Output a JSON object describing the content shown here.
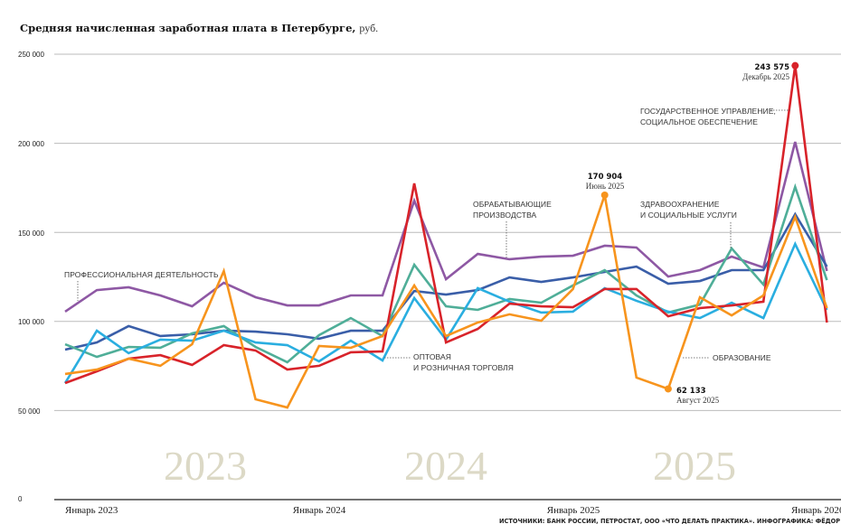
{
  "chart_data": {
    "type": "line",
    "title": "Средняя начисленная заработная плата в Петербурге,",
    "unit": "руб.",
    "ylim": [
      0,
      250000
    ],
    "yticks": [
      "0",
      "50 000",
      "100 000",
      "150 000",
      "200 000",
      "250 000"
    ],
    "yticks_values": [
      0,
      50000,
      100000,
      150000,
      200000,
      250000
    ],
    "xticks": [
      "Январь 2023",
      "Январь 2024",
      "Январь 2025",
      "Январь 2026"
    ],
    "year_watermarks": [
      "2023",
      "2024",
      "2025"
    ],
    "grid": true,
    "series": [
      {
        "name": "ПРОФЕССИОНАЛЬНАЯ ДЕЯТЕЛЬНОСТЬ",
        "color": "#8e58a4",
        "values": [
          105500,
          117600,
          119200,
          114600,
          108500,
          121700,
          113600,
          109000,
          109000,
          114600,
          114600,
          167800,
          123700,
          137900,
          134900,
          136400,
          136900,
          142500,
          141500,
          125200,
          128800,
          136400,
          130300,
          200800,
          128300
        ]
      },
      {
        "name": "ОБРАБАТЫВАЮЩИЕ ПРОИЗВОДСТВА",
        "color": "#3a5ea8",
        "values": [
          84200,
          88200,
          97400,
          91800,
          92800,
          94800,
          94300,
          92800,
          90300,
          94800,
          94800,
          117100,
          115100,
          117600,
          124700,
          122200,
          124700,
          127800,
          130800,
          121200,
          122700,
          128800,
          128800,
          160200,
          130800
        ]
      },
      {
        "name": "ЗДРАВООХРАНЕНИЕ И СОЦИАЛЬНЫЕ УСЛУГИ",
        "color": "#4fae98",
        "values": [
          87200,
          80100,
          85700,
          85200,
          93300,
          97400,
          85700,
          77100,
          92300,
          101900,
          91800,
          131800,
          108500,
          106500,
          112600,
          110500,
          120200,
          128800,
          114600,
          105000,
          109500,
          141000,
          120700,
          175500,
          123200
        ]
      },
      {
        "name": "ОПТОВАЯ И РОЗНИЧНАЯ ТОРГОВЛЯ",
        "color": "#2aaee0",
        "values": [
          65400,
          94800,
          82200,
          89800,
          89200,
          94800,
          88200,
          86700,
          77600,
          89200,
          78100,
          113100,
          89800,
          118700,
          111100,
          105000,
          105500,
          118700,
          111600,
          105500,
          101900,
          110500,
          101900,
          143500,
          106500
        ]
      },
      {
        "name": "ГОСУДАРСТВЕННОЕ УПРАВЛЕНИЕ, СОЦИАЛЬНОЕ ОБЕСПЕЧЕНИЕ",
        "color": "#d8232a",
        "values": [
          65400,
          72000,
          79100,
          81100,
          75600,
          86700,
          83700,
          73000,
          75100,
          82700,
          83200,
          177500,
          88200,
          95800,
          110000,
          108500,
          108000,
          118200,
          118200,
          102900,
          107500,
          109000,
          111100,
          243575,
          99400
        ]
      },
      {
        "name": "ОБРАЗОВАНИЕ",
        "color": "#f7941d",
        "values": [
          70500,
          73000,
          79100,
          75100,
          87200,
          128300,
          56300,
          51700,
          86200,
          85200,
          91800,
          120200,
          91800,
          99400,
          104000,
          100400,
          118200,
          170904,
          68500,
          62133,
          113600,
          103400,
          114600,
          158700,
          107500
        ]
      }
    ],
    "annotations": {
      "professional": [
        "ПРОФЕССИОНАЛЬНАЯ ДЕЯТЕЛЬНОСТЬ"
      ],
      "manufacturing": [
        "ОБРАБАТЫВАЮЩИЕ",
        "ПРОИЗВОДСТВА"
      ],
      "wholesale": [
        "ОПТОВАЯ",
        "И РОЗНИЧНАЯ ТОРГОВЛЯ"
      ],
      "health": [
        "ЗДРАВООХРАНЕНИЕ",
        "И СОЦИАЛЬНЫЕ УСЛУГИ"
      ],
      "government": [
        "ГОСУДАРСТВЕННОЕ УПРАВЛЕНИЕ,",
        "СОЦИАЛЬНОЕ ОБЕСПЕЧЕНИЕ"
      ],
      "education": [
        "ОБРАЗОВАНИЕ"
      ]
    },
    "highlights": [
      {
        "value_label": "243 575",
        "date": "Декабрь 2025",
        "series": 4,
        "index": 23
      },
      {
        "value_label": "170 904",
        "date": "Июнь 2025",
        "series": 5,
        "index": 17
      },
      {
        "value_label": "62 133",
        "date": "Август 2025",
        "series": 5,
        "index": 19
      }
    ]
  },
  "source": "ИСТОЧНИКИ: БАНК РОССИИ, ПЕТРОСТАТ, ООО «ЧТО ДЕЛАТЬ ПРАКТИКА». ИНФОГРАФИКА: ФЁДОР ШУМИЛОВ"
}
